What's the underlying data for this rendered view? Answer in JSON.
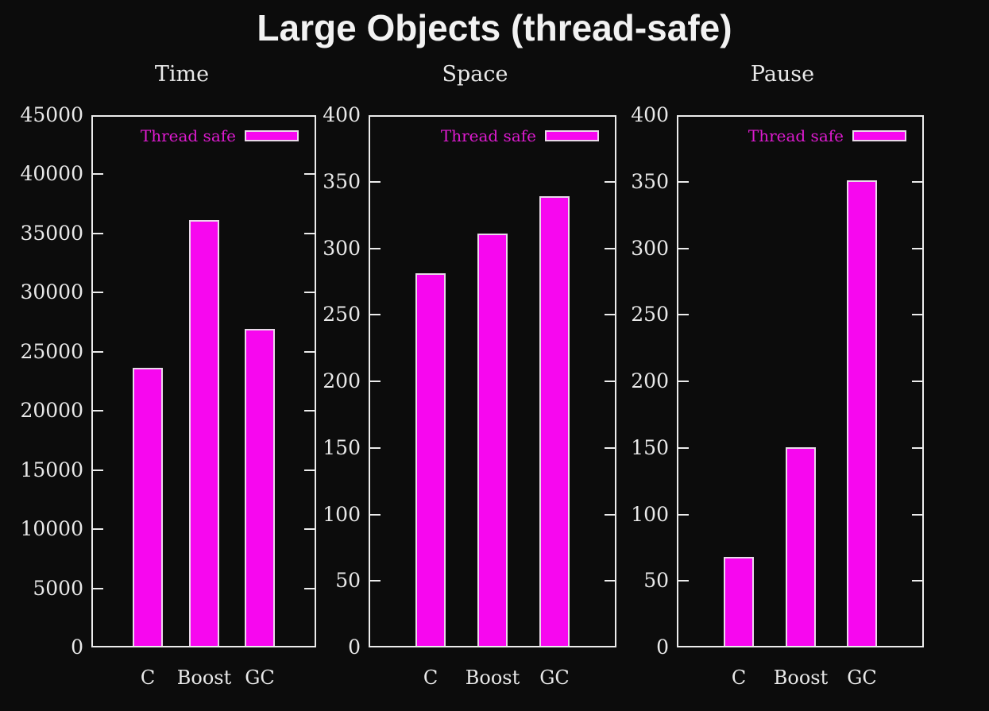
{
  "page": {
    "title": "Large Objects (thread-safe)",
    "background": "#0c0c0c",
    "colors": {
      "bar_fill": "#f707ef",
      "bar_border": "#e9d9e9",
      "axis": "#ececec",
      "text": "#e9e9e9",
      "legend_text": "#de1bd0"
    }
  },
  "chart_data": [
    {
      "type": "bar",
      "title": "Time",
      "categories": [
        "C",
        "Boost",
        "GC"
      ],
      "values": [
        23500,
        36000,
        26800
      ],
      "ylim": [
        0,
        45000
      ],
      "ytick_step": 5000,
      "yticks": [
        0,
        5000,
        10000,
        15000,
        20000,
        25000,
        30000,
        35000,
        40000,
        45000
      ],
      "legend_label": "Thread safe",
      "legend_position": "top-right",
      "grid": false
    },
    {
      "type": "bar",
      "title": "Space",
      "categories": [
        "C",
        "Boost",
        "GC"
      ],
      "values": [
        280,
        310,
        338
      ],
      "ylim": [
        0,
        400
      ],
      "ytick_step": 50,
      "yticks": [
        0,
        50,
        100,
        150,
        200,
        250,
        300,
        350,
        400
      ],
      "legend_label": "Thread safe",
      "legend_position": "top-right",
      "grid": false
    },
    {
      "type": "bar",
      "title": "Pause",
      "categories": [
        "C",
        "Boost",
        "GC"
      ],
      "values": [
        67,
        149,
        350
      ],
      "ylim": [
        0,
        400
      ],
      "ytick_step": 50,
      "yticks": [
        0,
        50,
        100,
        150,
        200,
        250,
        300,
        350,
        400
      ],
      "legend_label": "Thread safe",
      "legend_position": "top-right",
      "grid": false
    }
  ]
}
